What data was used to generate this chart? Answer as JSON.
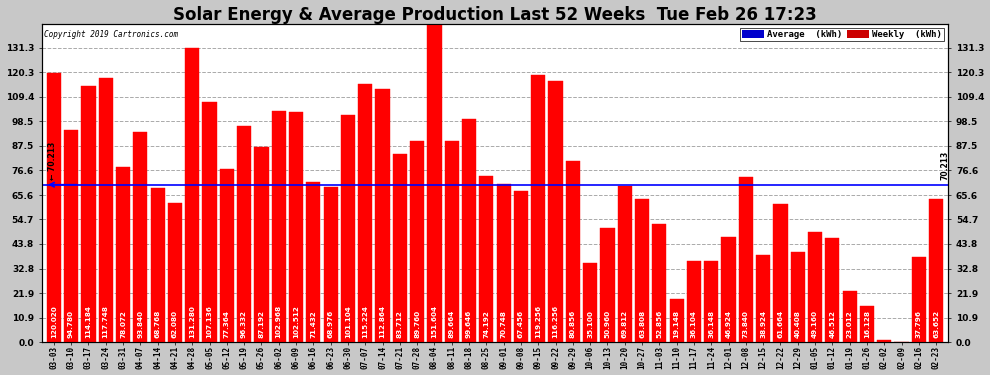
{
  "title": "Solar Energy & Average Production Last 52 Weeks  Tue Feb 26 17:23",
  "copyright": "Copyright 2019 Cartronics.com",
  "average_value": 70.213,
  "bar_color": "#ff0000",
  "average_line_color": "#0000ff",
  "background_color": "#c8c8c8",
  "plot_bg_color": "#ffffff",
  "categories": [
    "03-03",
    "03-10",
    "03-17",
    "03-24",
    "03-31",
    "04-07",
    "04-14",
    "04-21",
    "04-28",
    "05-05",
    "05-12",
    "05-19",
    "05-26",
    "06-02",
    "06-09",
    "06-16",
    "06-23",
    "06-30",
    "07-07",
    "07-14",
    "07-21",
    "07-28",
    "08-04",
    "08-11",
    "08-18",
    "08-25",
    "09-01",
    "09-08",
    "09-15",
    "09-22",
    "09-29",
    "10-06",
    "10-13",
    "10-20",
    "10-27",
    "11-03",
    "11-10",
    "11-17",
    "11-24",
    "12-01",
    "12-08",
    "12-15",
    "12-22",
    "12-29",
    "01-05",
    "01-12",
    "01-19",
    "01-26",
    "02-02",
    "02-09",
    "02-16",
    "02-23"
  ],
  "values": [
    120.02,
    94.78,
    114.184,
    117.748,
    78.072,
    93.84,
    68.768,
    62.08,
    131.28,
    107.136,
    77.364,
    96.332,
    87.192,
    102.968,
    102.512,
    71.432,
    68.976,
    101.104,
    115.224,
    112.864,
    83.712,
    89.76,
    151.604,
    89.664,
    99.646,
    74.192,
    70.748,
    67.456,
    119.256,
    116.256,
    80.856,
    35.1,
    50.96,
    69.812,
    63.808,
    52.856,
    19.148,
    36.104,
    36.148,
    46.924,
    73.84,
    38.924,
    61.664,
    40.408,
    49.16,
    46.512,
    23.012,
    16.128,
    1.012,
    0.0,
    37.796,
    63.652
  ],
  "ylim": [
    0,
    142
  ],
  "yticks": [
    0.0,
    10.9,
    21.9,
    32.8,
    43.8,
    54.7,
    65.6,
    76.6,
    87.5,
    98.5,
    109.4,
    120.3,
    131.3
  ],
  "grid_color": "#aaaaaa",
  "legend_avg_color": "#0000cc",
  "legend_weekly_color": "#cc0000",
  "title_fontsize": 12,
  "label_fontsize": 5.5,
  "value_fontsize": 5.2
}
